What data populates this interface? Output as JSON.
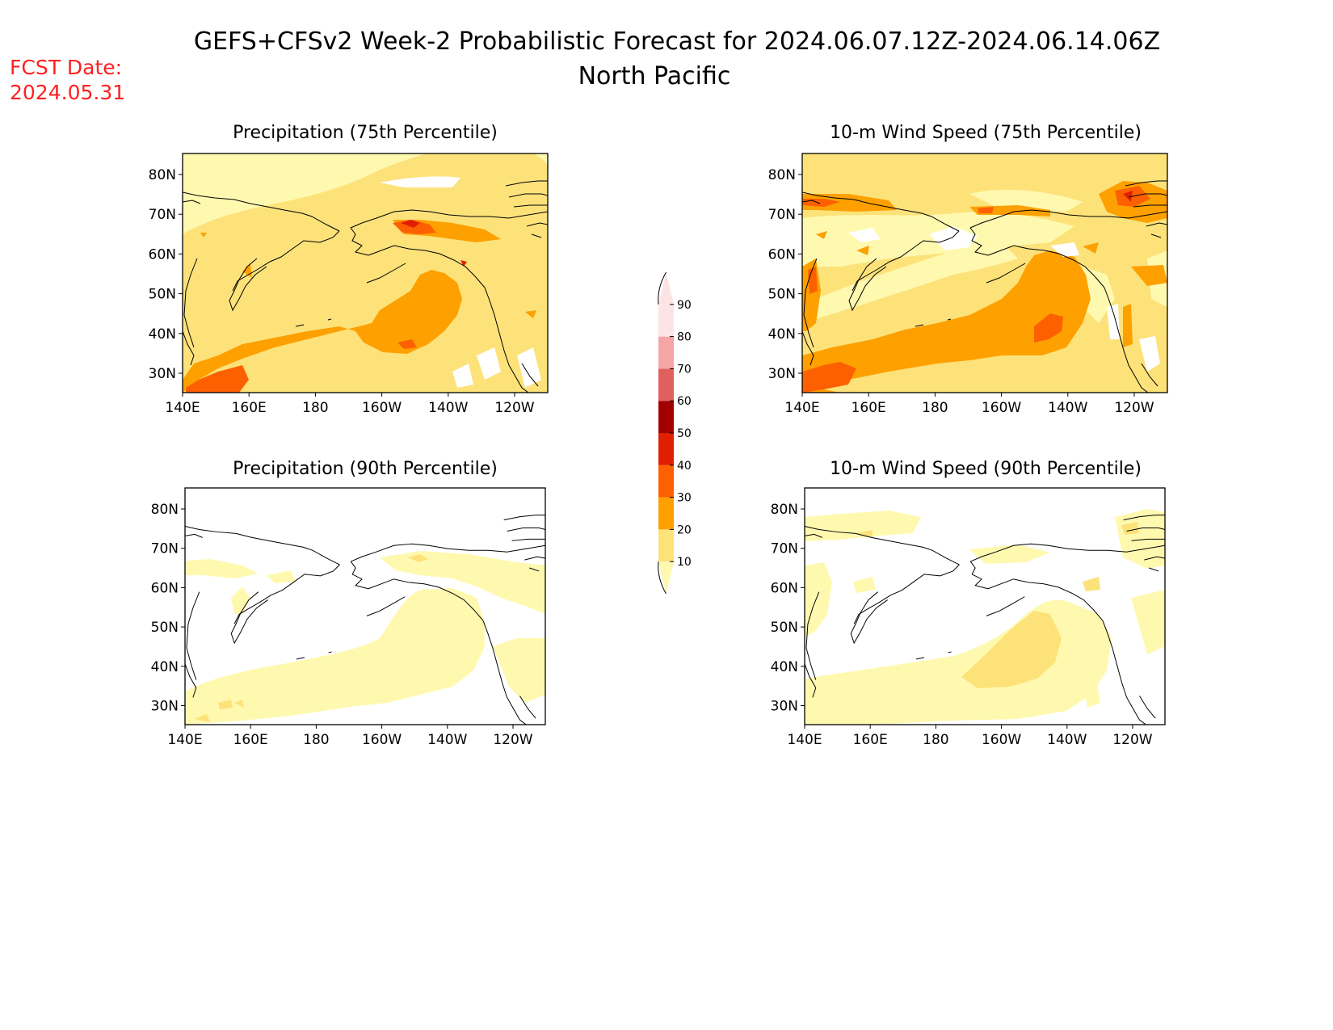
{
  "header": {
    "title": "GEFS+CFSv2 Week-2 Probabilistic Forecast for 2024.06.07.12Z-2024.06.14.06Z",
    "region": "North Pacific",
    "fcst_date_label": "FCST Date:",
    "fcst_date": "2024.05.31",
    "fcst_color": "#ff2020"
  },
  "axes": {
    "lat_labels": [
      "80N",
      "70N",
      "60N",
      "50N",
      "40N",
      "30N"
    ],
    "lon_labels": [
      "140E",
      "160E",
      "180",
      "160W",
      "140W",
      "120W"
    ]
  },
  "panels": [
    {
      "id": "precip-75",
      "title": "Precipitation (75th Percentile)"
    },
    {
      "id": "wind-75",
      "title": "10-m Wind Speed (75th Percentile)"
    },
    {
      "id": "precip-90",
      "title": "Precipitation (90th Percentile)"
    },
    {
      "id": "wind-90",
      "title": "10-m Wind Speed (90th Percentile)"
    }
  ],
  "colorbar": {
    "levels": [
      "10",
      "20",
      "30",
      "40",
      "50",
      "60",
      "70",
      "80",
      "90"
    ],
    "colors": [
      "#fff9b0",
      "#fde27a",
      "#fda000",
      "#fd6000",
      "#e01e00",
      "#a00000",
      "#e06060",
      "#f5a5a5",
      "#fde4e4"
    ]
  }
}
